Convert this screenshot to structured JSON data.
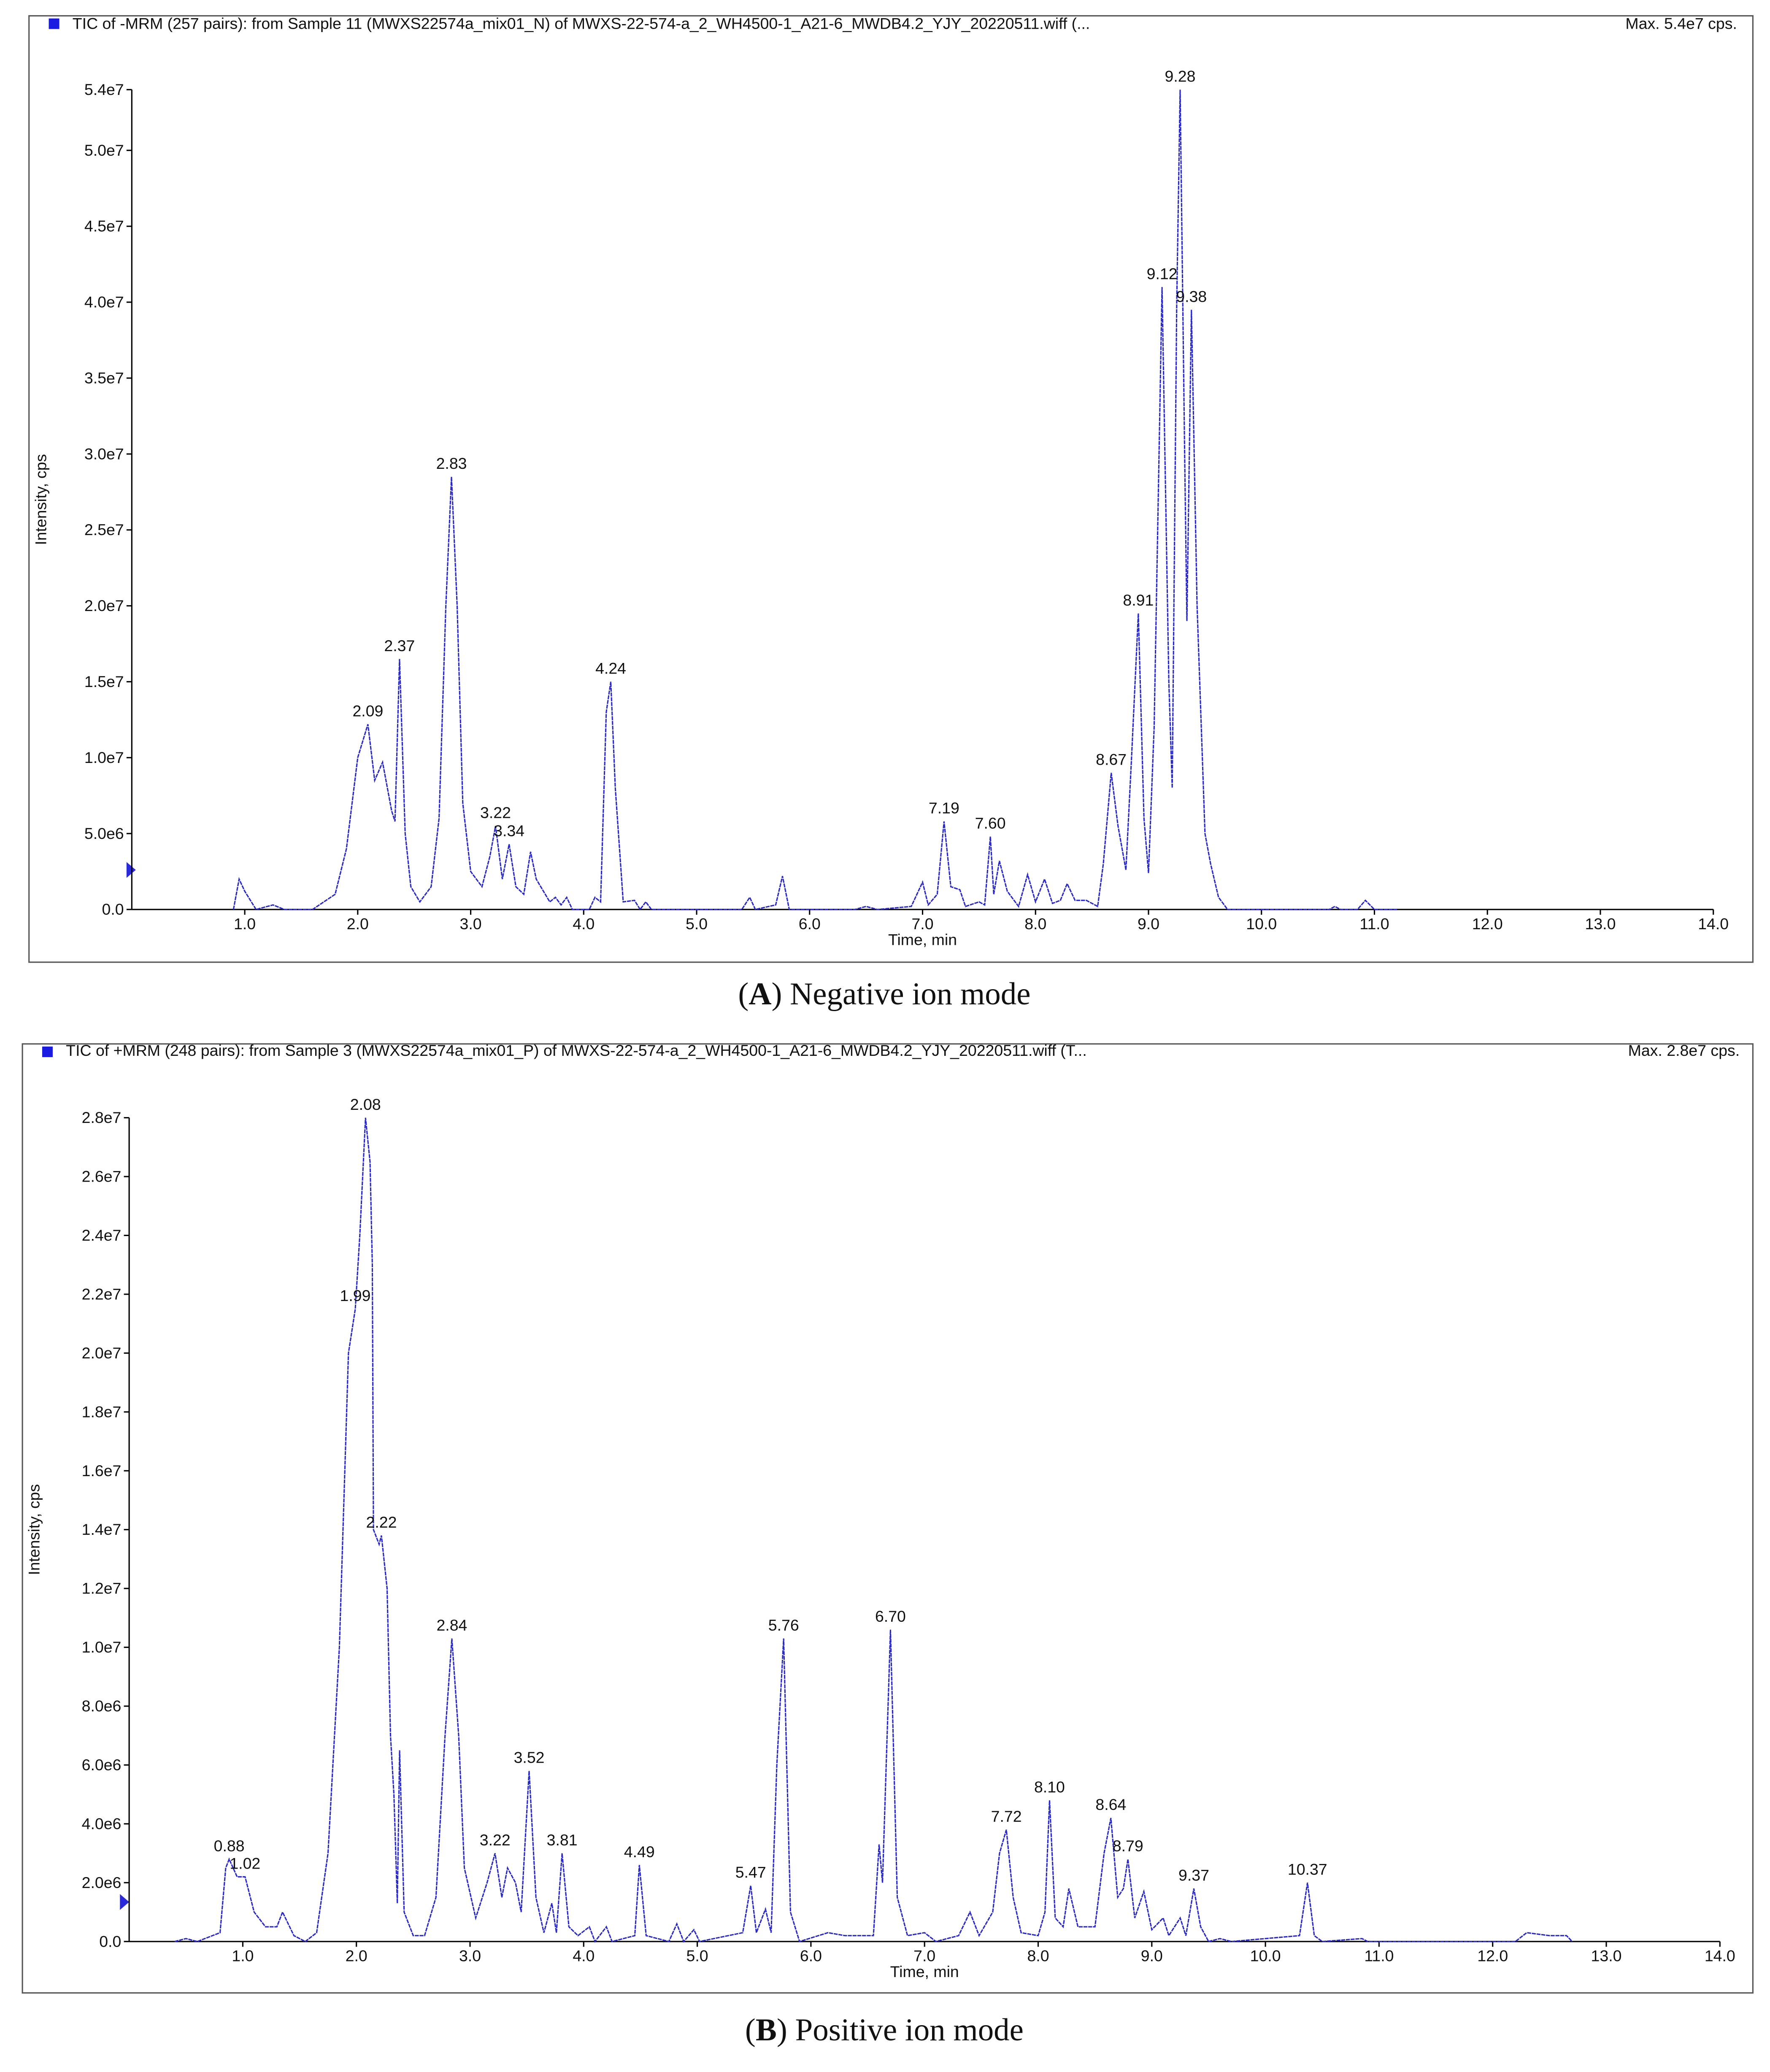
{
  "chart_data": [
    {
      "type": "line",
      "title": "TIC of -MRM (257 pairs): from Sample 11 (MWXS22574a_mix01_N) of MWXS-22-574-a_2_WH4500-1_A21-6_MWDB4.2_YJY_20220511.wiff (...",
      "max_label": "Max. 5.4e7 cps.",
      "x_label": "Time, min",
      "y_label": "Intensity, cps",
      "caption": {
        "prefix": "(",
        "letter": "A",
        "text": ") Negative ion mode"
      },
      "xlim": [
        0,
        14
      ],
      "xticks": [
        {
          "value": 1,
          "label": "1.0"
        },
        {
          "value": 2,
          "label": "2.0"
        },
        {
          "value": 3,
          "label": "3.0"
        },
        {
          "value": 4,
          "label": "4.0"
        },
        {
          "value": 5,
          "label": "5.0"
        },
        {
          "value": 6,
          "label": "6.0"
        },
        {
          "value": 7,
          "label": "7.0"
        },
        {
          "value": 8,
          "label": "8.0"
        },
        {
          "value": 9,
          "label": "9.0"
        },
        {
          "value": 10,
          "label": "10.0"
        },
        {
          "value": 11,
          "label": "11.0"
        },
        {
          "value": 12,
          "label": "12.0"
        },
        {
          "value": 13,
          "label": "13.0"
        },
        {
          "value": 14,
          "label": "14.0"
        }
      ],
      "ylim": [
        0,
        54000000
      ],
      "yticks": [
        {
          "value": 0,
          "label": "0.0"
        },
        {
          "value": 5000000,
          "label": "5.0e6"
        },
        {
          "value": 10000000,
          "label": "1.0e7"
        },
        {
          "value": 15000000,
          "label": "1.5e7"
        },
        {
          "value": 20000000,
          "label": "2.0e7"
        },
        {
          "value": 25000000,
          "label": "2.5e7"
        },
        {
          "value": 30000000,
          "label": "3.0e7"
        },
        {
          "value": 35000000,
          "label": "3.5e7"
        },
        {
          "value": 40000000,
          "label": "4.0e7"
        },
        {
          "value": 45000000,
          "label": "4.5e7"
        },
        {
          "value": 50000000,
          "label": "5.0e7"
        },
        {
          "value": 54000000,
          "label": "5.4e7"
        }
      ],
      "series": [
        {
          "color": "#2a2ac8",
          "x": [
            0.9,
            0.95,
            1.0,
            1.1,
            1.25,
            1.35,
            1.6,
            1.8,
            1.9,
            2.0,
            2.09,
            2.15,
            2.22,
            2.3,
            2.33,
            2.37,
            2.42,
            2.47,
            2.55,
            2.65,
            2.72,
            2.78,
            2.83,
            2.88,
            2.93,
            3.0,
            3.1,
            3.17,
            3.22,
            3.28,
            3.34,
            3.4,
            3.47,
            3.53,
            3.58,
            3.62,
            3.7,
            3.75,
            3.8,
            3.85,
            3.9,
            4.05,
            4.1,
            4.15,
            4.2,
            4.24,
            4.28,
            4.35,
            4.45,
            4.5,
            4.55,
            4.6,
            5.4,
            5.47,
            5.52,
            5.7,
            5.76,
            5.82,
            6.4,
            6.5,
            6.6,
            6.9,
            7.0,
            7.05,
            7.13,
            7.19,
            7.25,
            7.33,
            7.38,
            7.5,
            7.55,
            7.6,
            7.63,
            7.68,
            7.75,
            7.85,
            7.93,
            8.0,
            8.08,
            8.15,
            8.22,
            8.28,
            8.35,
            8.45,
            8.55,
            8.6,
            8.67,
            8.73,
            8.8,
            8.85,
            8.91,
            8.96,
            9.0,
            9.05,
            9.12,
            9.18,
            9.21,
            9.25,
            9.28,
            9.32,
            9.34,
            9.38,
            9.43,
            9.5,
            9.55,
            9.62,
            9.7,
            10.6,
            10.65,
            10.7,
            10.85,
            10.92,
            11.0,
            11.2
          ],
          "values": [
            0,
            2000000.0,
            1200000.0,
            0,
            300000.0,
            0,
            0,
            1000000.0,
            4000000.0,
            10000000.0,
            12200000.0,
            8500000.0,
            9700000.0,
            6500000.0,
            5800000.0,
            16500000.0,
            5000000.0,
            1500000.0,
            500000.0,
            1500000.0,
            6000000.0,
            20000000.0,
            28500000.0,
            20000000.0,
            7000000.0,
            2500000.0,
            1500000.0,
            3500000.0,
            5500000.0,
            2000000.0,
            4300000.0,
            1500000.0,
            1000000.0,
            3800000.0,
            2000000.0,
            1500000.0,
            500000.0,
            800000.0,
            300000.0,
            800000.0,
            0,
            0,
            800000.0,
            500000.0,
            13000000.0,
            15000000.0,
            8000000.0,
            500000.0,
            600000.0,
            0,
            500000.0,
            0,
            0,
            800000.0,
            0,
            300000.0,
            2200000.0,
            0,
            0,
            200000.0,
            0,
            200000.0,
            1800000.0,
            300000.0,
            1000000.0,
            5800000.0,
            1500000.0,
            1300000.0,
            200000.0,
            500000.0,
            300000.0,
            4800000.0,
            1000000.0,
            3200000.0,
            1200000.0,
            200000.0,
            2300000.0,
            500000.0,
            2000000.0,
            400000.0,
            600000.0,
            1700000.0,
            600000.0,
            600000.0,
            200000.0,
            3000000.0,
            9000000.0,
            5500000.0,
            2600000.0,
            10000000.0,
            19500000.0,
            6000000.0,
            2400000.0,
            12000000.0,
            41000000.0,
            15000000.0,
            8000000.0,
            40000000.0,
            54000000.0,
            30000000.0,
            19000000.0,
            39500000.0,
            20000000.0,
            5000000.0,
            3000000.0,
            800000.0,
            0,
            0,
            200000.0,
            0,
            0,
            600000.0,
            0,
            0
          ]
        }
      ],
      "peaks": [
        {
          "x": 2.09,
          "y": 12200000,
          "label": "2.09"
        },
        {
          "x": 2.37,
          "y": 16500000,
          "label": "2.37"
        },
        {
          "x": 2.83,
          "y": 28500000,
          "label": "2.83"
        },
        {
          "x": 3.22,
          "y": 5500000,
          "label": "3.22"
        },
        {
          "x": 3.34,
          "y": 4300000,
          "label": "3.34"
        },
        {
          "x": 4.24,
          "y": 15000000,
          "label": "4.24"
        },
        {
          "x": 7.19,
          "y": 5800000,
          "label": "7.19"
        },
        {
          "x": 7.6,
          "y": 4800000,
          "label": "7.60"
        },
        {
          "x": 8.67,
          "y": 9000000,
          "label": "8.67"
        },
        {
          "x": 8.91,
          "y": 19500000,
          "label": "8.91"
        },
        {
          "x": 9.12,
          "y": 41000000,
          "label": "9.12"
        },
        {
          "x": 9.28,
          "y": 54000000,
          "label": "9.28"
        },
        {
          "x": 9.38,
          "y": 39500000,
          "label": "9.38"
        }
      ]
    },
    {
      "type": "line",
      "title": "TIC of +MRM (248 pairs): from Sample 3 (MWXS22574a_mix01_P) of MWXS-22-574-a_2_WH4500-1_A21-6_MWDB4.2_YJY_20220511.wiff (T...",
      "max_label": "Max. 2.8e7 cps.",
      "x_label": "Time, min",
      "y_label": "Intensity, cps",
      "caption": {
        "prefix": "(",
        "letter": "B",
        "text": ") Positive ion mode"
      },
      "xlim": [
        0,
        14
      ],
      "xticks": [
        {
          "value": 1,
          "label": "1.0"
        },
        {
          "value": 2,
          "label": "2.0"
        },
        {
          "value": 3,
          "label": "3.0"
        },
        {
          "value": 4,
          "label": "4.0"
        },
        {
          "value": 5,
          "label": "5.0"
        },
        {
          "value": 6,
          "label": "6.0"
        },
        {
          "value": 7,
          "label": "7.0"
        },
        {
          "value": 8,
          "label": "8.0"
        },
        {
          "value": 9,
          "label": "9.0"
        },
        {
          "value": 10,
          "label": "10.0"
        },
        {
          "value": 11,
          "label": "11.0"
        },
        {
          "value": 12,
          "label": "12.0"
        },
        {
          "value": 13,
          "label": "13.0"
        },
        {
          "value": 14,
          "label": "14.0"
        }
      ],
      "ylim": [
        0,
        28000000
      ],
      "yticks": [
        {
          "value": 0,
          "label": "0.0"
        },
        {
          "value": 2000000,
          "label": "2.0e6"
        },
        {
          "value": 4000000,
          "label": "4.0e6"
        },
        {
          "value": 6000000,
          "label": "6.0e6"
        },
        {
          "value": 8000000,
          "label": "8.0e6"
        },
        {
          "value": 10000000,
          "label": "1.0e7"
        },
        {
          "value": 12000000,
          "label": "1.2e7"
        },
        {
          "value": 14000000,
          "label": "1.4e7"
        },
        {
          "value": 16000000,
          "label": "1.6e7"
        },
        {
          "value": 18000000,
          "label": "1.8e7"
        },
        {
          "value": 20000000,
          "label": "2.0e7"
        },
        {
          "value": 22000000,
          "label": "2.2e7"
        },
        {
          "value": 24000000,
          "label": "2.4e7"
        },
        {
          "value": 26000000,
          "label": "2.6e7"
        },
        {
          "value": 28000000,
          "label": "2.8e7"
        }
      ],
      "series": [
        {
          "color": "#2a2ac8",
          "x": [
            0.4,
            0.5,
            0.6,
            0.8,
            0.85,
            0.88,
            0.95,
            1.02,
            1.1,
            1.2,
            1.3,
            1.35,
            1.45,
            1.55,
            1.65,
            1.75,
            1.85,
            1.93,
            1.99,
            2.03,
            2.08,
            2.12,
            2.14,
            2.15,
            2.2,
            2.22,
            2.27,
            2.3,
            2.33,
            2.36,
            2.38,
            2.42,
            2.5,
            2.6,
            2.7,
            2.78,
            2.84,
            2.9,
            2.95,
            3.05,
            3.15,
            3.22,
            3.28,
            3.33,
            3.4,
            3.45,
            3.52,
            3.58,
            3.65,
            3.72,
            3.76,
            3.81,
            3.87,
            3.95,
            4.05,
            4.1,
            4.2,
            4.25,
            4.45,
            4.49,
            4.55,
            4.75,
            4.82,
            4.88,
            4.97,
            5.02,
            5.4,
            5.47,
            5.52,
            5.6,
            5.65,
            5.7,
            5.76,
            5.82,
            5.9,
            6.15,
            6.3,
            6.55,
            6.6,
            6.63,
            6.7,
            6.76,
            6.85,
            7.0,
            7.1,
            7.3,
            7.4,
            7.48,
            7.6,
            7.66,
            7.72,
            7.78,
            7.85,
            8.0,
            8.06,
            8.1,
            8.15,
            8.22,
            8.27,
            8.35,
            8.5,
            8.58,
            8.64,
            8.7,
            8.75,
            8.79,
            8.85,
            8.93,
            9.0,
            9.1,
            9.15,
            9.25,
            9.3,
            9.37,
            9.43,
            9.5,
            9.6,
            9.7,
            10.0,
            10.3,
            10.37,
            10.43,
            10.5,
            10.85,
            10.9,
            11.5,
            12.2,
            12.3,
            12.5,
            12.65,
            12.7
          ],
          "values": [
            0,
            100000.0,
            0,
            300000.0,
            2500000.0,
            2800000.0,
            2200000.0,
            2200000.0,
            1000000.0,
            500000.0,
            500000.0,
            1000000.0,
            200000.0,
            0,
            300000.0,
            3000000.0,
            10000000.0,
            20000000.0,
            21500000.0,
            24000000.0,
            28000000.0,
            26500000.0,
            23000000.0,
            14000000.0,
            13500000.0,
            13800000.0,
            12000000.0,
            7000000.0,
            5000000.0,
            1300000.0,
            6500000.0,
            1000000.0,
            200000.0,
            200000.0,
            1500000.0,
            7000000.0,
            10300000.0,
            7000000.0,
            2500000.0,
            800000.0,
            2000000.0,
            3000000.0,
            1500000.0,
            2500000.0,
            2000000.0,
            1000000.0,
            5800000.0,
            1500000.0,
            300000.0,
            1300000.0,
            300000.0,
            3000000.0,
            500000.0,
            200000.0,
            500000.0,
            0,
            500000.0,
            0,
            200000.0,
            2600000.0,
            200000.0,
            0,
            600000.0,
            0,
            400000.0,
            0,
            300000.0,
            1900000.0,
            300000.0,
            1100000.0,
            300000.0,
            6000000.0,
            10300000.0,
            1000000.0,
            0,
            300000.0,
            200000.0,
            200000.0,
            3300000.0,
            2000000.0,
            10600000.0,
            1500000.0,
            200000.0,
            300000.0,
            0,
            200000.0,
            1000000.0,
            200000.0,
            1000000.0,
            3000000.0,
            3800000.0,
            1500000.0,
            300000.0,
            200000.0,
            1000000.0,
            4800000.0,
            800000.0,
            500000.0,
            1800000.0,
            500000.0,
            500000.0,
            3000000.0,
            4200000.0,
            1500000.0,
            1800000.0,
            2800000.0,
            800000.0,
            1700000.0,
            400000.0,
            800000.0,
            200000.0,
            800000.0,
            200000.0,
            1800000.0,
            500000.0,
            0,
            100000.0,
            0,
            100000.0,
            200000.0,
            2000000.0,
            200000.0,
            0,
            100000.0,
            0,
            0,
            0,
            300000.0,
            200000.0,
            200000.0,
            0
          ]
        }
      ],
      "peaks": [
        {
          "x": 0.88,
          "y": 2800000,
          "label": "0.88"
        },
        {
          "x": 1.02,
          "y": 2200000,
          "label": "1.02"
        },
        {
          "x": 1.99,
          "y": 21500000,
          "label": "1.99"
        },
        {
          "x": 2.08,
          "y": 28000000,
          "label": "2.08"
        },
        {
          "x": 2.22,
          "y": 13800000,
          "label": "2.22"
        },
        {
          "x": 2.84,
          "y": 10300000,
          "label": "2.84"
        },
        {
          "x": 3.22,
          "y": 3000000,
          "label": "3.22"
        },
        {
          "x": 3.52,
          "y": 5800000,
          "label": "3.52"
        },
        {
          "x": 3.81,
          "y": 3000000,
          "label": "3.81"
        },
        {
          "x": 4.49,
          "y": 2600000,
          "label": "4.49"
        },
        {
          "x": 5.47,
          "y": 1900000,
          "label": "5.47"
        },
        {
          "x": 5.76,
          "y": 10300000,
          "label": "5.76"
        },
        {
          "x": 6.7,
          "y": 10600000,
          "label": "6.70"
        },
        {
          "x": 7.72,
          "y": 3800000,
          "label": "7.72"
        },
        {
          "x": 8.1,
          "y": 4800000,
          "label": "8.10"
        },
        {
          "x": 8.64,
          "y": 4200000,
          "label": "8.64"
        },
        {
          "x": 8.79,
          "y": 2800000,
          "label": "8.79"
        },
        {
          "x": 9.37,
          "y": 1800000,
          "label": "9.37"
        },
        {
          "x": 10.37,
          "y": 2000000,
          "label": "10.37"
        }
      ]
    }
  ]
}
